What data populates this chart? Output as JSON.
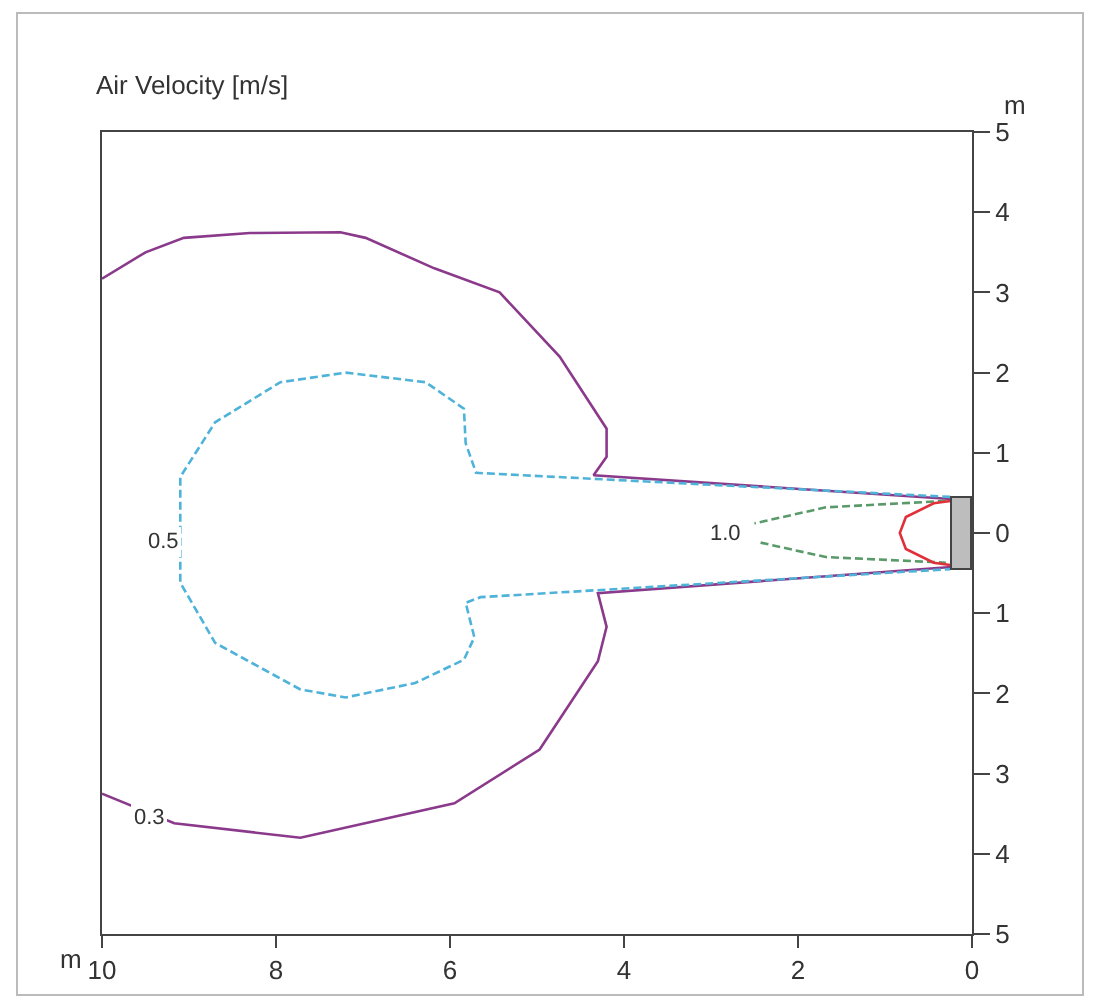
{
  "chart_data": {
    "type": "line",
    "title": "Air Velocity [m/s]",
    "xlabel": "m",
    "ylabel": "m",
    "xlim": [
      10,
      0
    ],
    "xticks": [
      10,
      8,
      6,
      4,
      2,
      0
    ],
    "ylim": [
      -5,
      5
    ],
    "yticks": [
      {
        "value": -5,
        "label": "5"
      },
      {
        "value": -4,
        "label": "4"
      },
      {
        "value": -3,
        "label": "3"
      },
      {
        "value": -2,
        "label": "2"
      },
      {
        "value": -1,
        "label": "1"
      },
      0,
      1,
      2,
      3,
      4,
      5
    ],
    "grid": false,
    "marker": "none",
    "series": [
      {
        "color": "#8b3a8b",
        "line_style": "solid",
        "x": [
          10,
          9.5,
          9.06,
          8.3,
          7.26,
          6.97,
          6.18,
          5.43,
          4.74,
          4.2,
          4.2,
          4.35,
          0.2
        ],
        "values": [
          3.17,
          3.5,
          3.68,
          3.74,
          3.75,
          3.68,
          3.3,
          3.0,
          2.2,
          1.3,
          0.95,
          0.72,
          0.42
        ]
      },
      {
        "color": "#8b3a8b",
        "line_style": "solid",
        "x": [
          0.2,
          4.3,
          4.2,
          4.3,
          4.97,
          5.95,
          7.72,
          9.17,
          10
        ],
        "values": [
          -0.42,
          -0.75,
          -1.17,
          -1.6,
          -2.7,
          -3.37,
          -3.8,
          -3.62,
          -3.25
        ]
      },
      {
        "color": "#4fb3d9",
        "line_style": "dashed",
        "x": [
          0.25,
          5.7,
          5.82,
          5.84,
          6.28,
          7.2,
          7.95,
          8.7,
          9.1,
          9.1,
          9.1,
          8.7,
          7.72,
          7.2,
          6.4,
          5.84,
          5.72,
          5.82,
          5.65,
          0.25
        ],
        "values": [
          0.45,
          0.75,
          1.12,
          1.55,
          1.88,
          2.0,
          1.88,
          1.38,
          0.7,
          -0.2,
          -0.62,
          -1.37,
          -1.95,
          -2.05,
          -1.87,
          -1.58,
          -1.3,
          -0.87,
          -0.8,
          -0.45
        ]
      },
      {
        "color": "#5a9a6a",
        "line_style": "dashed",
        "x": [
          0.3,
          1.68,
          2.5,
          null,
          2.43,
          1.68,
          0.3
        ],
        "values": [
          0.4,
          0.32,
          0.12,
          null,
          -0.12,
          -0.3,
          -0.37
        ]
      },
      {
        "color": "#e0303a",
        "line_style": "solid",
        "x": [
          0.25,
          0.44,
          0.76,
          0.83,
          0.76,
          0.44,
          0.25
        ],
        "values": [
          0.4,
          0.37,
          0.2,
          0.0,
          -0.2,
          -0.37,
          -0.4
        ]
      }
    ],
    "annotations": [
      {
        "text": "0.5",
        "x": 9.29,
        "y": -0.1
      },
      {
        "text": "0.3",
        "x": 9.45,
        "y": -3.55
      },
      {
        "text": "1.0",
        "x": 2.83,
        "y": 0
      }
    ]
  }
}
